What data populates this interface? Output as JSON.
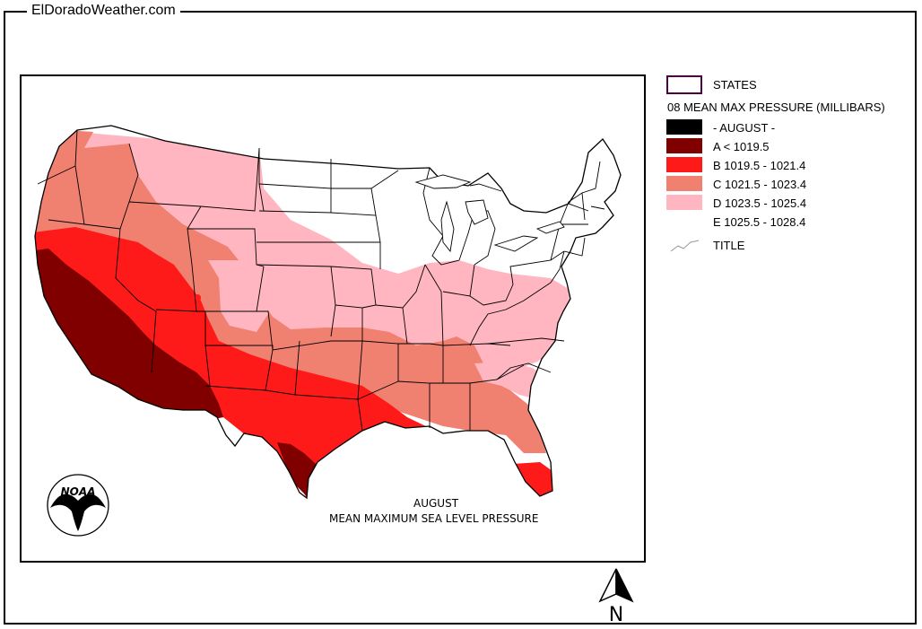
{
  "site": {
    "title": "ElDoradoWeather.com"
  },
  "map": {
    "caption_line1": "AUGUST",
    "caption_line2": "MEAN MAXIMUM SEA LEVEL PRESSURE",
    "logo_text": "NOAA",
    "north_label": "N"
  },
  "legend": {
    "states_label": "STATES",
    "variable_title": "08 MEAN MAX PRESSURE (MILLIBARS)",
    "month_label": "- AUGUST -",
    "title_label": "TITLE",
    "classes": [
      {
        "label": "A < 1019.5",
        "color": "#800000"
      },
      {
        "label": "B 1019.5 - 1021.4",
        "color": "#ff1a1a"
      },
      {
        "label": "C 1021.5 - 1023.4",
        "color": "#f08070"
      },
      {
        "label": "D 1023.5 - 1025.4",
        "color": "#ffb6c1"
      },
      {
        "label": "E 1025.5 - 1028.4",
        "color": "#ffffff"
      }
    ],
    "month_swatch_color": "#000000",
    "states_outline_color": "#4b0040"
  }
}
